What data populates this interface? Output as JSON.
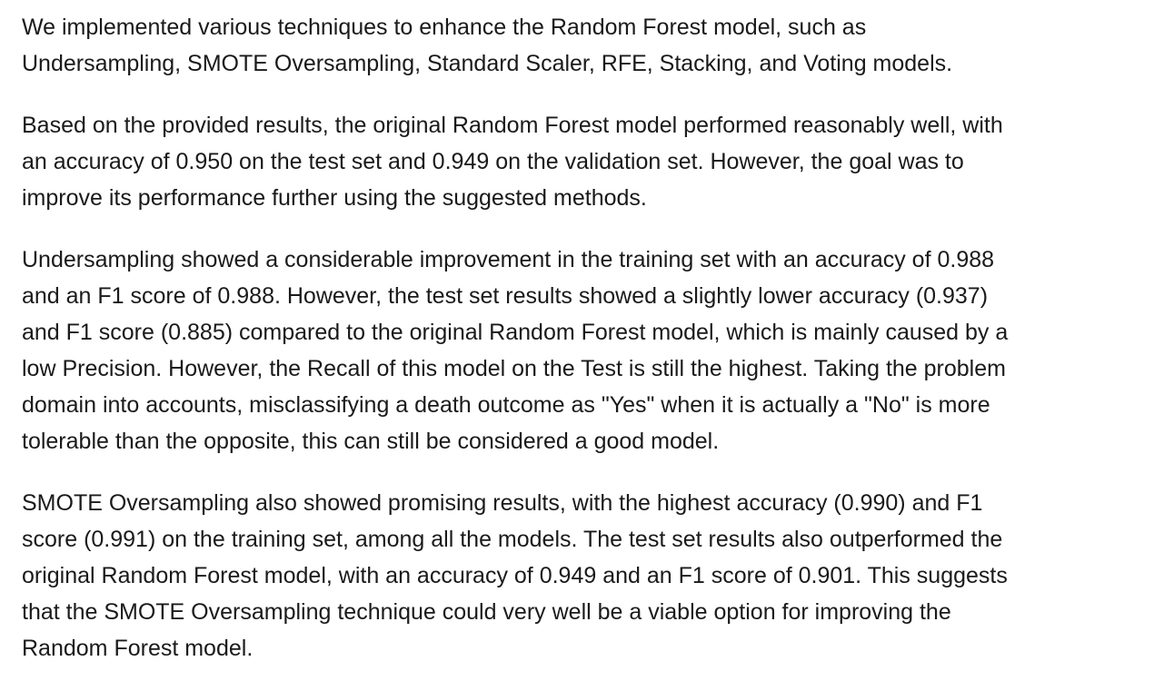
{
  "paragraphs": [
    {
      "lines": [
        "We implemented various techniques to enhance the Random Forest model, such as",
        "Undersampling, SMOTE Oversampling, Standard Scaler, RFE, Stacking, and Voting models."
      ]
    },
    {
      "lines": [
        "Based on the provided results, the original Random Forest model performed reasonably well, with",
        "an accuracy of 0.950 on the test set and 0.949 on the validation set. However, the goal was to",
        "improve its performance further using the suggested methods."
      ]
    },
    {
      "lines": [
        "Undersampling showed a considerable improvement in the training set with an accuracy of 0.988",
        "and an F1 score of 0.988. However, the test set results showed a slightly lower accuracy (0.937)",
        "and F1 score (0.885) compared to the original Random Forest model, which is mainly caused by a",
        "low Precision. However, the Recall of this model on the Test is still the highest. Taking the problem",
        "domain into accounts, misclassifying a death outcome as \"Yes\" when it is actually a \"No\" is more",
        "tolerable than the opposite, this can still be considered a good model."
      ]
    },
    {
      "lines": [
        "SMOTE Oversampling also showed promising results, with the highest accuracy (0.990) and F1",
        "score (0.991) on the training set, among all the models. The test set results also outperformed the",
        "original Random Forest model, with an accuracy of 0.949 and an F1 score of 0.901. This suggests",
        "that the SMOTE Oversampling technique could very well be a viable option for improving the",
        "Random Forest model."
      ]
    }
  ]
}
